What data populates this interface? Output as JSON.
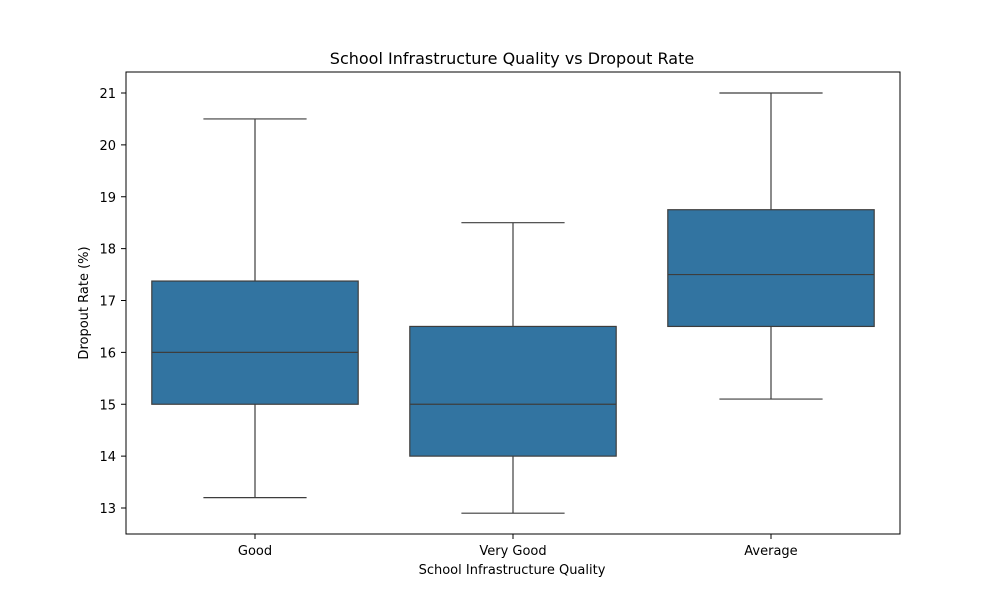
{
  "chart_data": {
    "type": "box",
    "title": "School Infrastructure Quality vs Dropout Rate",
    "xlabel": "School Infrastructure Quality",
    "ylabel": "Dropout Rate (%)",
    "categories": [
      "Good",
      "Very Good",
      "Average"
    ],
    "boxes": [
      {
        "category": "Good",
        "whisker_low": 13.2,
        "q1": 15.0,
        "median": 16.0,
        "q3": 17.375,
        "whisker_high": 20.5
      },
      {
        "category": "Very Good",
        "whisker_low": 12.9,
        "q1": 14.0,
        "median": 15.0,
        "q3": 16.5,
        "whisker_high": 18.5
      },
      {
        "category": "Average",
        "whisker_low": 15.1,
        "q1": 16.5,
        "median": 17.5,
        "q3": 18.75,
        "whisker_high": 21.0
      }
    ],
    "yticks": [
      13,
      14,
      15,
      16,
      17,
      18,
      19,
      20,
      21
    ],
    "ylim": [
      12.5,
      21.4
    ],
    "grid": false,
    "box_color": "#3274a1",
    "line_color": "#3d3d3d"
  }
}
